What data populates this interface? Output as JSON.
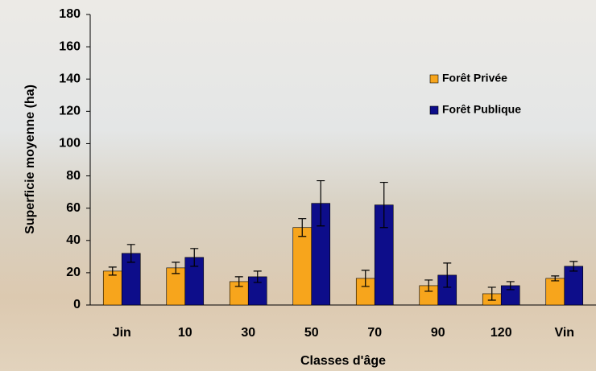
{
  "chart_data": {
    "type": "bar",
    "xlabel": "Classes d'âge",
    "ylabel": "Superficie moyenne (ha)",
    "categories": [
      "Jin",
      "10",
      "30",
      "50",
      "70",
      "90",
      "120",
      "Vin"
    ],
    "series": [
      {
        "name": "Forêt Privée",
        "color": "#f7a51c",
        "values": [
          21,
          23,
          14.5,
          48,
          16.5,
          12,
          7,
          16.5
        ],
        "errors": [
          2.5,
          3.5,
          3,
          5.5,
          5,
          3.5,
          4,
          1.5
        ]
      },
      {
        "name": "Forêt Publique",
        "color": "#0d0d8a",
        "values": [
          32,
          29.5,
          17.5,
          63,
          62,
          18.5,
          12,
          24
        ],
        "errors": [
          5.5,
          5.5,
          3.5,
          14,
          14,
          7.5,
          2.5,
          3
        ]
      }
    ],
    "ylim": [
      0,
      180
    ],
    "yticks": [
      0,
      20,
      40,
      60,
      80,
      100,
      120,
      140,
      160,
      180
    ],
    "grid": false,
    "legend": "right"
  }
}
